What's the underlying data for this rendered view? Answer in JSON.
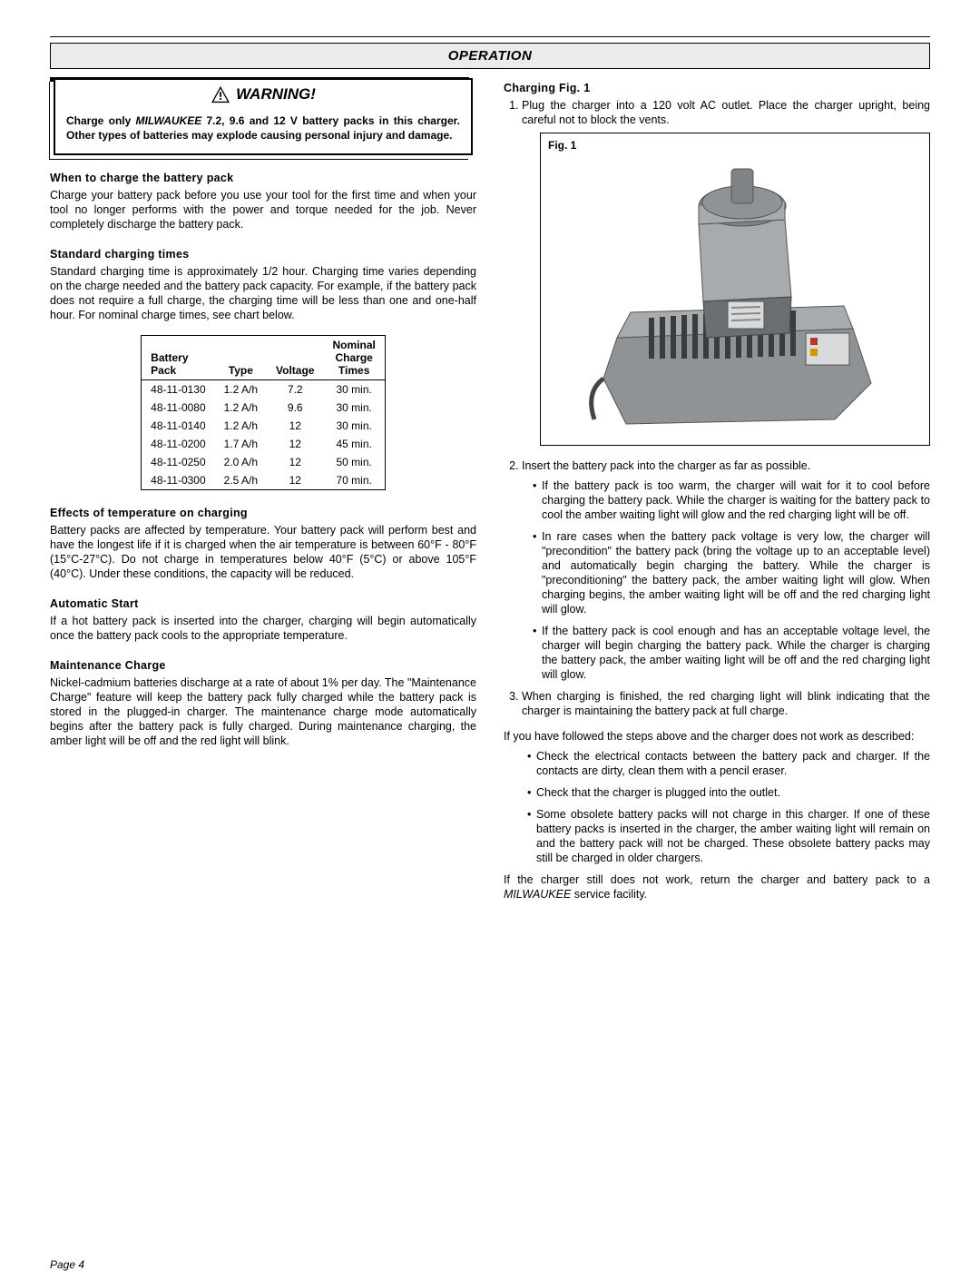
{
  "header": {
    "title": "OPERATION"
  },
  "warning": {
    "title": "WARNING!",
    "body_pre": "Charge only ",
    "brand": "MILWAUKEE",
    "body_post": " 7.2, 9.6 and 12 V battery packs in this charger. Other types of batteries may explode causing personal injury and damage."
  },
  "left": {
    "h1": "When to charge the battery pack",
    "p1": "Charge your battery pack before you use your tool for the first time and when your tool no longer performs with the power and torque needed for the job. Never completely discharge the battery pack.",
    "h2": "Standard charging times",
    "p2": "Standard charging time is approximately 1/2 hour. Charging time varies depending on the charge needed and the battery pack capacity. For example, if the battery pack does not require a full charge, the charging time will be less than one and one-half hour. For nominal charge times, see chart below.",
    "table": {
      "headers": [
        "Battery\nPack",
        "Type",
        "Voltage",
        "Nominal\nCharge\nTimes"
      ],
      "rows": [
        [
          "48-11-0130",
          "1.2 A/h",
          "7.2",
          "30 min."
        ],
        [
          "48-11-0080",
          "1.2 A/h",
          "9.6",
          "30 min."
        ],
        [
          "48-11-0140",
          "1.2 A/h",
          "12",
          "30 min."
        ],
        [
          "48-11-0200",
          "1.7 A/h",
          "12",
          "45 min."
        ],
        [
          "48-11-0250",
          "2.0 A/h",
          "12",
          "50 min."
        ],
        [
          "48-11-0300",
          "2.5 A/h",
          "12",
          "70 min."
        ]
      ]
    },
    "h3": "Effects of temperature on charging",
    "p3": "Battery packs are affected by temperature. Your battery pack will perform best and have the longest life if it is charged when the air temperature is between 60°F - 80°F (15°C-27°C). Do not charge in temperatures below 40°F (5°C) or above 105°F (40°C). Under these conditions, the capacity will be reduced.",
    "h4": "Automatic Start",
    "p4": "If a hot battery pack is inserted into the charger, charging will begin automatically once the battery pack cools to the appropriate temperature.",
    "h5": "Maintenance Charge",
    "p5": "Nickel-cadmium batteries discharge at a rate of about 1% per day. The \"Maintenance Charge\" feature will keep the battery pack fully charged while the battery pack is stored in the plugged-in charger. The maintenance charge mode automatically begins after the battery pack is fully charged. During maintenance charging, the amber light will be off and the red light will blink."
  },
  "right": {
    "h1": "Charging Fig. 1",
    "step1": "Plug the charger into a 120 volt AC outlet. Place the charger upright, being careful not to block the vents.",
    "fig_label": "Fig. 1",
    "step2": "Insert the battery pack into the charger as far as possible.",
    "b1": "If the battery pack is too warm, the charger will wait for it to cool before charging the battery pack. While the charger is waiting for the battery pack to cool the amber waiting light will glow and the red charging light will be off.",
    "b2": "In rare cases when the battery pack voltage is very low, the charger will \"precondition\" the battery pack (bring the voltage up to an acceptable level) and automatically begin charging the battery. While the charger is \"preconditioning\" the battery pack, the amber waiting light will glow. When charging begins, the amber waiting light will be off and the red charging light will glow.",
    "b3": "If the battery pack is cool enough and has an acceptable voltage level, the charger will begin charging the battery pack. While the charger is charging the battery pack, the amber waiting light will be off and the red charging light will glow.",
    "step3": "When charging is finished, the red charging light will blink indicating that the charger is maintaining the battery pack at full charge.",
    "p_after": "If you have followed the steps above and the charger does not work as described:",
    "c1": "Check the electrical contacts between the battery pack and charger. If the contacts are dirty, clean them with a pencil eraser.",
    "c2": "Check that the charger is plugged into the outlet.",
    "c3": "Some obsolete battery packs will not charge in this charger. If one of these battery packs is inserted in the charger, the amber waiting light will remain on and the battery pack will not be charged. These obsolete battery packs may still be charged in older chargers.",
    "p_final_pre": "If the charger still does not work, return the charger and battery pack to a ",
    "p_final_brand": "MILWAUKEE",
    "p_final_post": " service facility."
  },
  "footer": {
    "page": "Page 4"
  },
  "figure": {
    "charger_body": "#8f9396",
    "charger_dark": "#6b6f72",
    "battery_body": "#a7abae",
    "battery_top": "#7f8386",
    "slot": "#3a3c3e"
  }
}
